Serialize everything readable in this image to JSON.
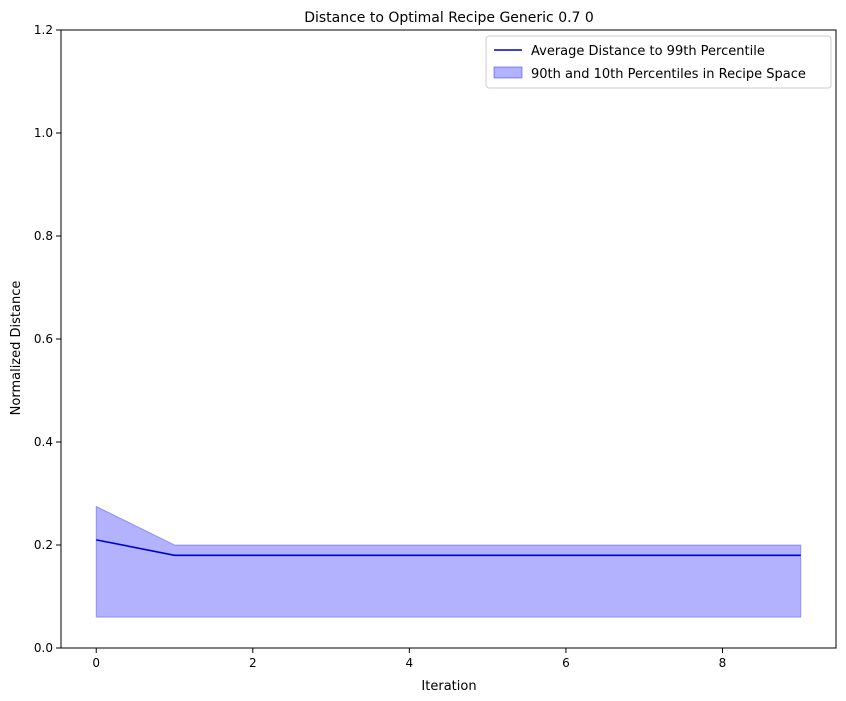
{
  "chart_data": {
    "type": "line",
    "title": "Distance to Optimal Recipe Generic 0.7 0",
    "xlabel": "Iteration",
    "ylabel": "Normalized Distance",
    "xlim": [
      -0.45,
      9.45
    ],
    "ylim": [
      0,
      1.2
    ],
    "xticks": [
      0,
      2,
      4,
      6,
      8
    ],
    "yticks": [
      0.0,
      0.2,
      0.4,
      0.6,
      0.8,
      1.0,
      1.2
    ],
    "xtick_labels": [
      "0",
      "2",
      "4",
      "6",
      "8"
    ],
    "ytick_labels": [
      "0.0",
      "0.2",
      "0.4",
      "0.6",
      "0.8",
      "1.0",
      "1.2"
    ],
    "grid": false,
    "legend_position": "top-right",
    "x": [
      0,
      1,
      2,
      3,
      4,
      5,
      6,
      7,
      8,
      9
    ],
    "series": [
      {
        "name": "Average Distance to 99th Percentile",
        "kind": "line",
        "color": "#0000cc",
        "values": [
          0.21,
          0.18,
          0.18,
          0.18,
          0.18,
          0.18,
          0.18,
          0.18,
          0.18,
          0.18
        ]
      }
    ],
    "band": {
      "name": "90th and 10th Percentiles in Recipe Space",
      "kind": "fill_between",
      "color": "#0000ff",
      "upper": [
        0.275,
        0.2,
        0.2,
        0.2,
        0.2,
        0.2,
        0.2,
        0.2,
        0.2,
        0.2
      ],
      "lower": [
        0.06,
        0.06,
        0.06,
        0.06,
        0.06,
        0.06,
        0.06,
        0.06,
        0.06,
        0.06
      ]
    }
  }
}
